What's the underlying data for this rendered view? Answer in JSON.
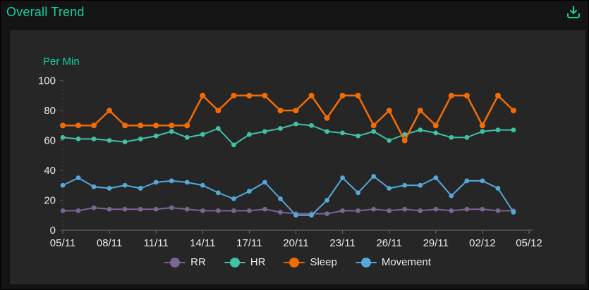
{
  "header": {
    "title": "Overall Trend"
  },
  "colors": {
    "background": "#141414",
    "card": "#262626",
    "accent": "#12d1a2",
    "axis_text": "#e8e8e8",
    "axis_line": "#6f6f6f",
    "y_axis_dash": "#3f3f3f"
  },
  "chart_data": {
    "type": "line",
    "title": "Overall Trend",
    "y_axis_title": "Per Min",
    "grid": false,
    "legend_position": "bottom",
    "ylim": [
      0,
      100
    ],
    "y_ticks": [
      0,
      20,
      40,
      60,
      80,
      100
    ],
    "x_tick_labels": [
      "05/11",
      "08/11",
      "11/11",
      "14/11",
      "17/11",
      "20/11",
      "23/11",
      "26/11",
      "29/11",
      "02/12",
      "05/12"
    ],
    "x_tick_step": 3,
    "x_slots": 31,
    "x": [
      "05/11",
      "06/11",
      "07/11",
      "08/11",
      "09/11",
      "10/11",
      "11/11",
      "12/11",
      "13/11",
      "14/11",
      "15/11",
      "16/11",
      "17/11",
      "18/11",
      "19/11",
      "20/11",
      "21/11",
      "22/11",
      "23/11",
      "24/11",
      "25/11",
      "26/11",
      "27/11",
      "28/11",
      "29/11",
      "30/11",
      "01/12",
      "02/12",
      "03/12",
      "04/12"
    ],
    "series": [
      {
        "name": "RR",
        "color": "#7a6691",
        "values": [
          13,
          13,
          15,
          14,
          14,
          14,
          14,
          15,
          14,
          13,
          13,
          13,
          13,
          14,
          12,
          11,
          11,
          11,
          13,
          13,
          14,
          13,
          14,
          13,
          14,
          13,
          14,
          14,
          13,
          13
        ]
      },
      {
        "name": "HR",
        "color": "#41c1a6",
        "values": [
          62,
          61,
          61,
          60,
          59,
          61,
          63,
          66,
          62,
          64,
          68,
          57,
          64,
          66,
          68,
          71,
          70,
          66,
          65,
          63,
          66,
          60,
          64,
          67,
          65,
          62,
          62,
          66,
          67,
          67
        ]
      },
      {
        "name": "Sleep",
        "color": "#f26c05",
        "values": [
          70,
          70,
          70,
          80,
          70,
          70,
          70,
          70,
          70,
          90,
          80,
          90,
          90,
          90,
          80,
          80,
          90,
          75,
          90,
          90,
          70,
          80,
          60,
          80,
          70,
          90,
          90,
          70,
          90,
          80
        ]
      },
      {
        "name": "Movement",
        "color": "#54a9dc",
        "values": [
          30,
          35,
          29,
          28,
          30,
          28,
          32,
          33,
          32,
          30,
          25,
          21,
          26,
          32,
          21,
          10,
          10,
          20,
          35,
          25,
          36,
          28,
          30,
          30,
          35,
          23,
          33,
          33,
          28,
          12
        ]
      }
    ]
  }
}
